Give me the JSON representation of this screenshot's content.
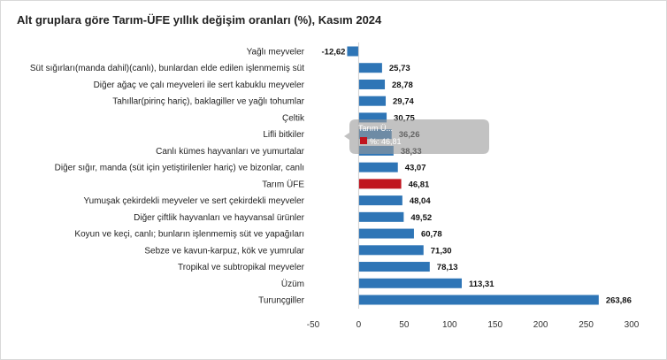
{
  "chart_data": {
    "type": "bar",
    "orientation": "horizontal",
    "title": "Alt gruplara göre Tarım-ÜFE yıllık değişim oranları (%), Kasım 2024",
    "categories": [
      "Yağlı meyveler",
      "Süt sığırları(manda dahil)(canlı), bunlardan elde edilen işlenmemiş süt",
      "Diğer ağaç ve çalı meyveleri ile sert kabuklu meyveler",
      "Tahıllar(pirinç hariç), baklagiller ve yağlı tohumlar",
      "Çeltik",
      "Lifli bitkiler",
      "Canlı kümes hayvanları ve yumurtalar",
      "Diğer sığır, manda (süt için yetiştirilenler hariç) ve bizonlar, canlı",
      "Tarım ÜFE",
      "Yumuşak çekirdekli meyveler ve sert çekirdekli meyveler",
      "Diğer çiftlik hayvanları ve hayvansal ürünler",
      "Koyun ve keçi, canlı; bunların işlenmemiş süt ve yapağıları",
      "Sebze ve kavun-karpuz, kök ve yumrular",
      "Tropikal ve subtropikal meyveler",
      "Üzüm",
      "Turunçgiller"
    ],
    "values": [
      -12.62,
      25.73,
      28.78,
      29.74,
      30.75,
      36.26,
      38.33,
      43.07,
      46.81,
      48.04,
      49.52,
      60.78,
      71.3,
      78.13,
      113.31,
      263.86
    ],
    "value_labels": [
      "-12,62",
      "25,73",
      "28,78",
      "29,74",
      "30,75",
      "36,26",
      "38,33",
      "43,07",
      "46,81",
      "48,04",
      "49,52",
      "60,78",
      "71,30",
      "78,13",
      "113,31",
      "263,86"
    ],
    "highlight_category": "Tarım ÜFE",
    "xlim": [
      -50,
      300
    ],
    "xticks": [
      -50,
      0,
      50,
      100,
      150,
      200,
      250,
      300
    ],
    "xlabel": "",
    "ylabel": "",
    "grid": false,
    "colors": {
      "bar": "#2e75b6",
      "highlight": "#c0141e"
    }
  },
  "tooltip": {
    "title": "Tarım Ü...",
    "series_text": "%: 46,81",
    "swatch_color": "#c0141e"
  }
}
